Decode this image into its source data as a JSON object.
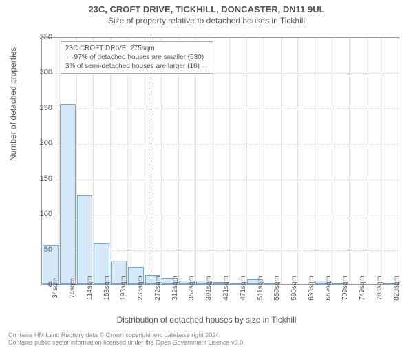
{
  "title": "23C, CROFT DRIVE, TICKHILL, DONCASTER, DN11 9UL",
  "subtitle": "Size of property relative to detached houses in Tickhill",
  "ylabel": "Number of detached properties",
  "xlabel": "Distribution of detached houses by size in Tickhill",
  "footer1": "Contains HM Land Registry data © Crown copyright and database right 2024.",
  "footer2": "Contains public sector information licensed under the Open Government Licence v3.0.",
  "annotation": {
    "line1": "23C CROFT DRIVE: 275sqm",
    "line2": "← 97% of detached houses are smaller (530)",
    "line3": "3% of semi-detached houses are larger (16) →"
  },
  "chart": {
    "type": "histogram",
    "ylim": [
      0,
      350
    ],
    "ytick_step": 50,
    "marker_x": 275,
    "marker_color": "#d62728",
    "bar_fill": "#d6e9f8",
    "bar_stroke": "#7aa5c9",
    "grid_color": "#cccccc",
    "axis_color": "#999999",
    "background_color": "#ffffff",
    "xticks": [
      "34sqm",
      "74sqm",
      "114sqm",
      "153sqm",
      "193sqm",
      "233sqm",
      "272sqm",
      "312sqm",
      "352sqm",
      "391sqm",
      "431sqm",
      "471sqm",
      "511sqm",
      "550sqm",
      "590sqm",
      "630sqm",
      "669sqm",
      "709sqm",
      "749sqm",
      "788sqm",
      "828sqm"
    ],
    "values": [
      55,
      255,
      125,
      57,
      33,
      24,
      13,
      9,
      5,
      5,
      3,
      2,
      7,
      2,
      0,
      0,
      5,
      2,
      0,
      0,
      1
    ],
    "title_fontsize": 13,
    "subtitle_fontsize": 12,
    "label_fontsize": 12,
    "tick_fontsize": 10
  }
}
